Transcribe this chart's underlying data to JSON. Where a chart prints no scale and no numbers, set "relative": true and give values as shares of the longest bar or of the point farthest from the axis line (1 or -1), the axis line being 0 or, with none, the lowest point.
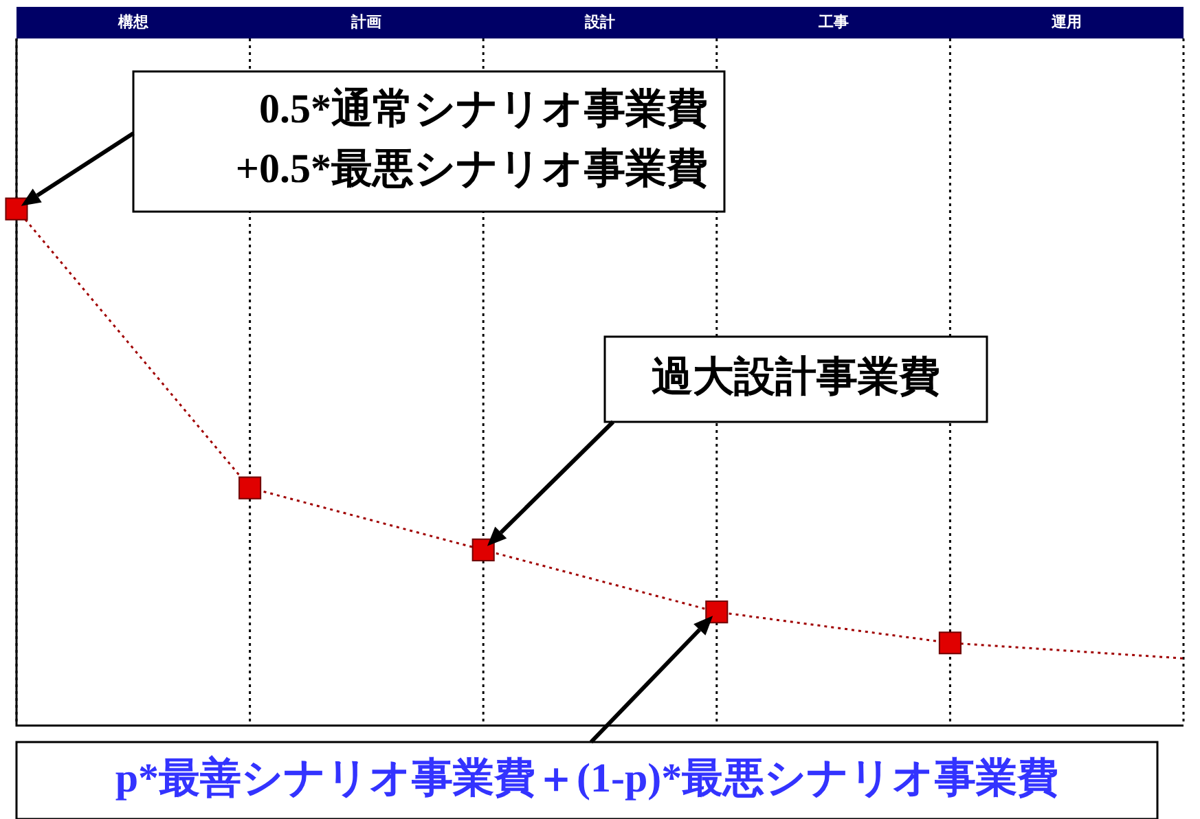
{
  "chart_data": {
    "type": "line",
    "relative": true,
    "categories": [
      null,
      null,
      null,
      null,
      null,
      null
    ],
    "series": [
      {
        "color": "#a00000",
        "values": [
          1,
          0.46,
          0.34,
          0.22,
          0.16,
          0.13
        ]
      }
    ],
    "marker": "square",
    "line_style": "dotted",
    "grid": "x",
    "legend": false,
    "annotations": [
      "構想",
      "計画",
      "設計",
      "工事",
      "運用",
      "0.5*通常シナリオ事業費\n+0.5*最悪シナリオ事業費",
      "過大設計事業費",
      "p*最善シナリオ事業費＋(1-p)*最悪シナリオ事業費"
    ]
  }
}
